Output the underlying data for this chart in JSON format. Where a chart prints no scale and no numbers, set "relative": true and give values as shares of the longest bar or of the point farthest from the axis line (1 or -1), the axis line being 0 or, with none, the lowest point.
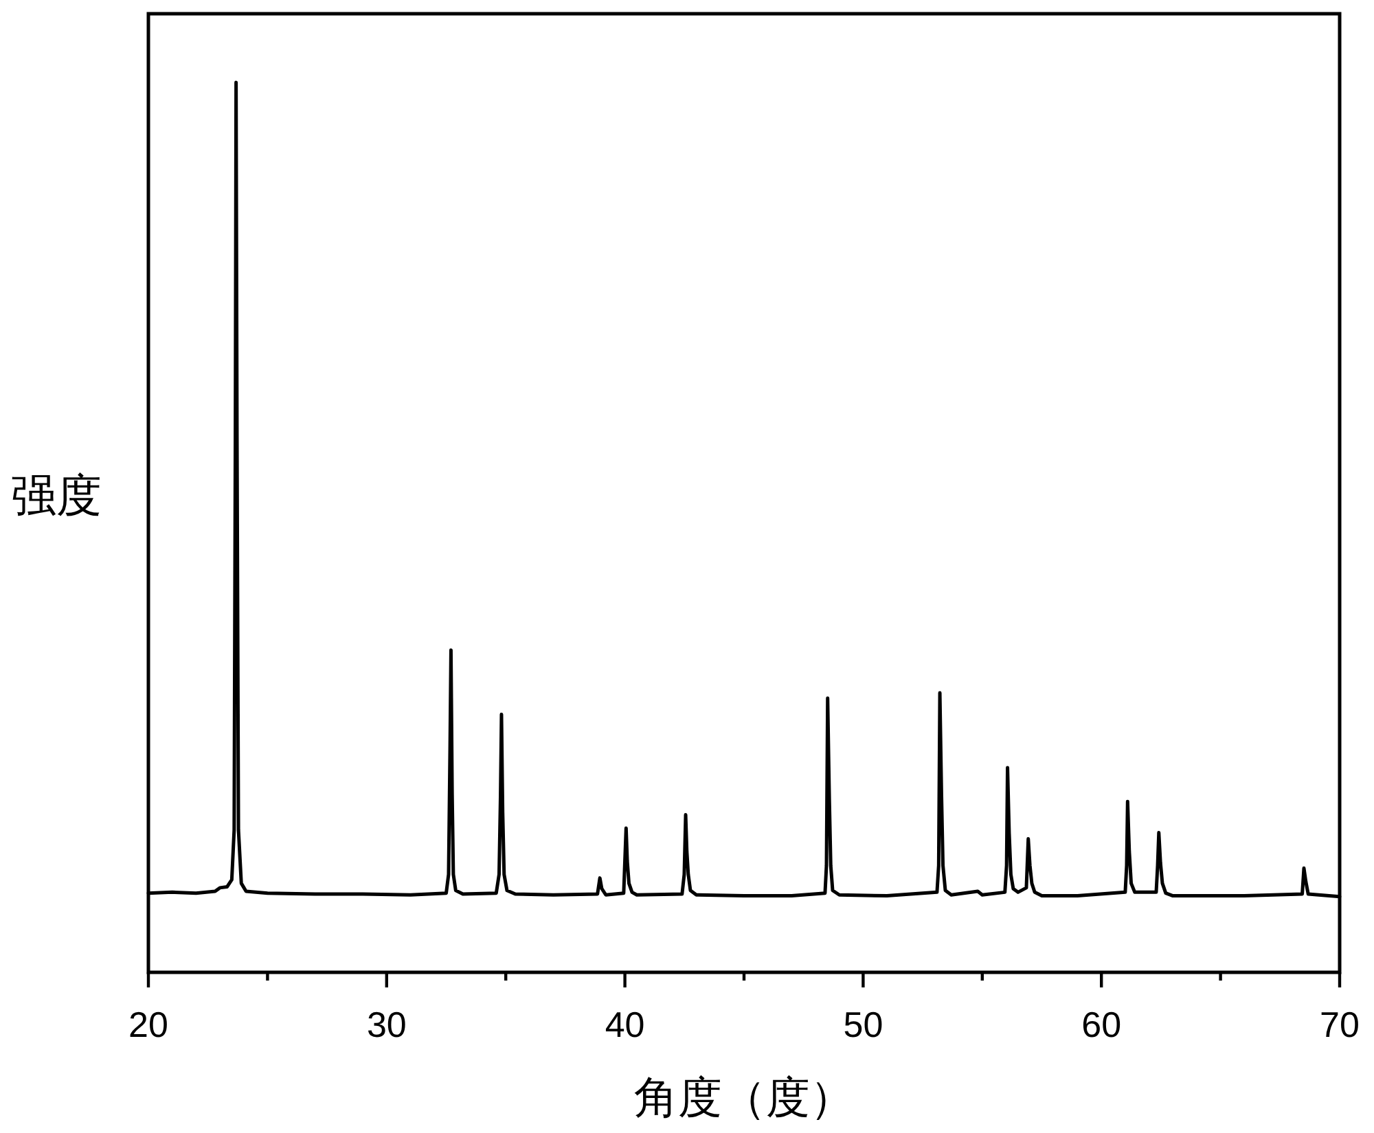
{
  "chart_data": {
    "type": "line",
    "xlabel": "角度（度）",
    "ylabel": "强度",
    "relative": true,
    "xlim": [
      20,
      70
    ],
    "xticks": [
      20,
      {
        "value": 25,
        "label": null
      },
      30,
      {
        "value": 35,
        "label": null
      },
      40,
      {
        "value": 45,
        "label": null
      },
      50,
      {
        "value": 55,
        "label": null
      },
      60,
      {
        "value": 65,
        "label": null
      },
      70
    ],
    "x": [
      20.0,
      21.0,
      22.0,
      22.8,
      23.0,
      23.3,
      23.5,
      23.6,
      23.65,
      23.68,
      23.72,
      23.78,
      23.9,
      24.1,
      25.0,
      27.0,
      29.0,
      31.0,
      32.5,
      32.6,
      32.66,
      32.7,
      32.75,
      32.8,
      32.9,
      33.2,
      34.6,
      34.72,
      34.78,
      34.82,
      34.87,
      34.93,
      35.05,
      35.4,
      37.0,
      38.85,
      38.95,
      39.03,
      39.2,
      39.95,
      40.05,
      40.1,
      40.17,
      40.3,
      40.5,
      42.4,
      42.49,
      42.55,
      42.6,
      42.66,
      42.75,
      43.0,
      45.0,
      47.0,
      48.4,
      48.46,
      48.51,
      48.58,
      48.64,
      48.72,
      49.0,
      51.0,
      53.1,
      53.17,
      53.22,
      53.29,
      53.35,
      53.45,
      53.7,
      54.81,
      55.0,
      55.95,
      56.02,
      56.06,
      56.13,
      56.2,
      56.3,
      56.5,
      56.85,
      56.93,
      57.0,
      57.08,
      57.2,
      57.5,
      59.0,
      61.0,
      61.06,
      61.1,
      61.17,
      61.25,
      61.4,
      62.3,
      62.36,
      62.41,
      62.48,
      62.56,
      62.7,
      63.0,
      66.0,
      68.43,
      68.5,
      68.58,
      68.68,
      70.0
    ],
    "series": [
      {
        "color": "#000000",
        "values": [
          0.089,
          0.09,
          0.089,
          0.091,
          0.095,
          0.096,
          0.104,
          0.16,
          0.6,
          1.0,
          0.6,
          0.16,
          0.1,
          0.091,
          0.089,
          0.088,
          0.088,
          0.087,
          0.089,
          0.11,
          0.25,
          0.362,
          0.2,
          0.11,
          0.092,
          0.088,
          0.089,
          0.11,
          0.2,
          0.29,
          0.18,
          0.11,
          0.092,
          0.088,
          0.087,
          0.088,
          0.106,
          0.094,
          0.087,
          0.089,
          0.162,
          0.125,
          0.1,
          0.09,
          0.087,
          0.088,
          0.11,
          0.177,
          0.136,
          0.11,
          0.092,
          0.087,
          0.086,
          0.086,
          0.089,
          0.12,
          0.308,
          0.195,
          0.12,
          0.092,
          0.087,
          0.086,
          0.09,
          0.12,
          0.314,
          0.198,
          0.12,
          0.092,
          0.087,
          0.091,
          0.087,
          0.09,
          0.12,
          0.23,
          0.156,
          0.11,
          0.094,
          0.09,
          0.095,
          0.15,
          0.12,
          0.1,
          0.09,
          0.086,
          0.086,
          0.09,
          0.12,
          0.192,
          0.136,
          0.1,
          0.09,
          0.09,
          0.12,
          0.157,
          0.123,
          0.1,
          0.089,
          0.086,
          0.086,
          0.088,
          0.117,
          0.102,
          0.088,
          0.085
        ]
      }
    ]
  }
}
